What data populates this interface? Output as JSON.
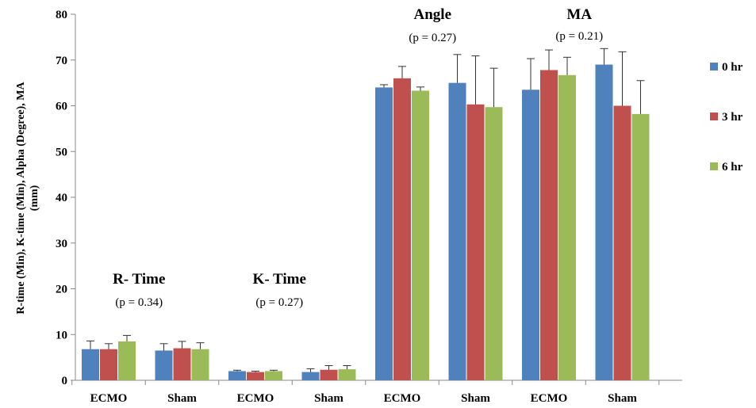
{
  "chart_data": {
    "type": "bar",
    "ylabel_line1": "R-time (Min), K-time (Min), Alpha (Degree), MA",
    "ylabel_line2": "(mm)",
    "ylim": [
      0,
      80
    ],
    "yticks": [
      0,
      10,
      20,
      30,
      40,
      50,
      60,
      70,
      80
    ],
    "grid": false,
    "legend_position": "right",
    "categories": [
      "ECMO",
      "Sham",
      "ECMO",
      "Sham",
      "ECMO",
      "Sham",
      "ECMO",
      "Sham"
    ],
    "series": [
      {
        "name": "0 hr",
        "color": "#4f81bd",
        "values": [
          6.8,
          6.5,
          2.0,
          1.8,
          64.0,
          65.0,
          63.5,
          69.0
        ],
        "errors": [
          1.8,
          1.5,
          0.2,
          0.7,
          0.6,
          6.2,
          6.8,
          3.5
        ]
      },
      {
        "name": "3 hr",
        "color": "#c0504d",
        "values": [
          6.8,
          7.0,
          1.8,
          2.3,
          66.0,
          60.3,
          67.8,
          60.0
        ],
        "errors": [
          1.2,
          1.5,
          0.2,
          0.9,
          2.6,
          10.6,
          4.4,
          11.8
        ]
      },
      {
        "name": "6 hr",
        "color": "#9bbb59",
        "values": [
          8.5,
          6.8,
          2.0,
          2.4,
          63.3,
          59.7,
          66.7,
          58.2
        ],
        "errors": [
          1.3,
          1.4,
          0.2,
          0.8,
          0.8,
          8.5,
          3.9,
          7.3
        ]
      }
    ],
    "annotations": [
      {
        "title": "R- Time",
        "p": "(p = 0.34)"
      },
      {
        "title": "K- Time",
        "p": "(p = 0.27)"
      },
      {
        "title": "Angle",
        "p": "(p = 0.27)"
      },
      {
        "title": "MA",
        "p": "(p = 0.21)"
      }
    ]
  }
}
